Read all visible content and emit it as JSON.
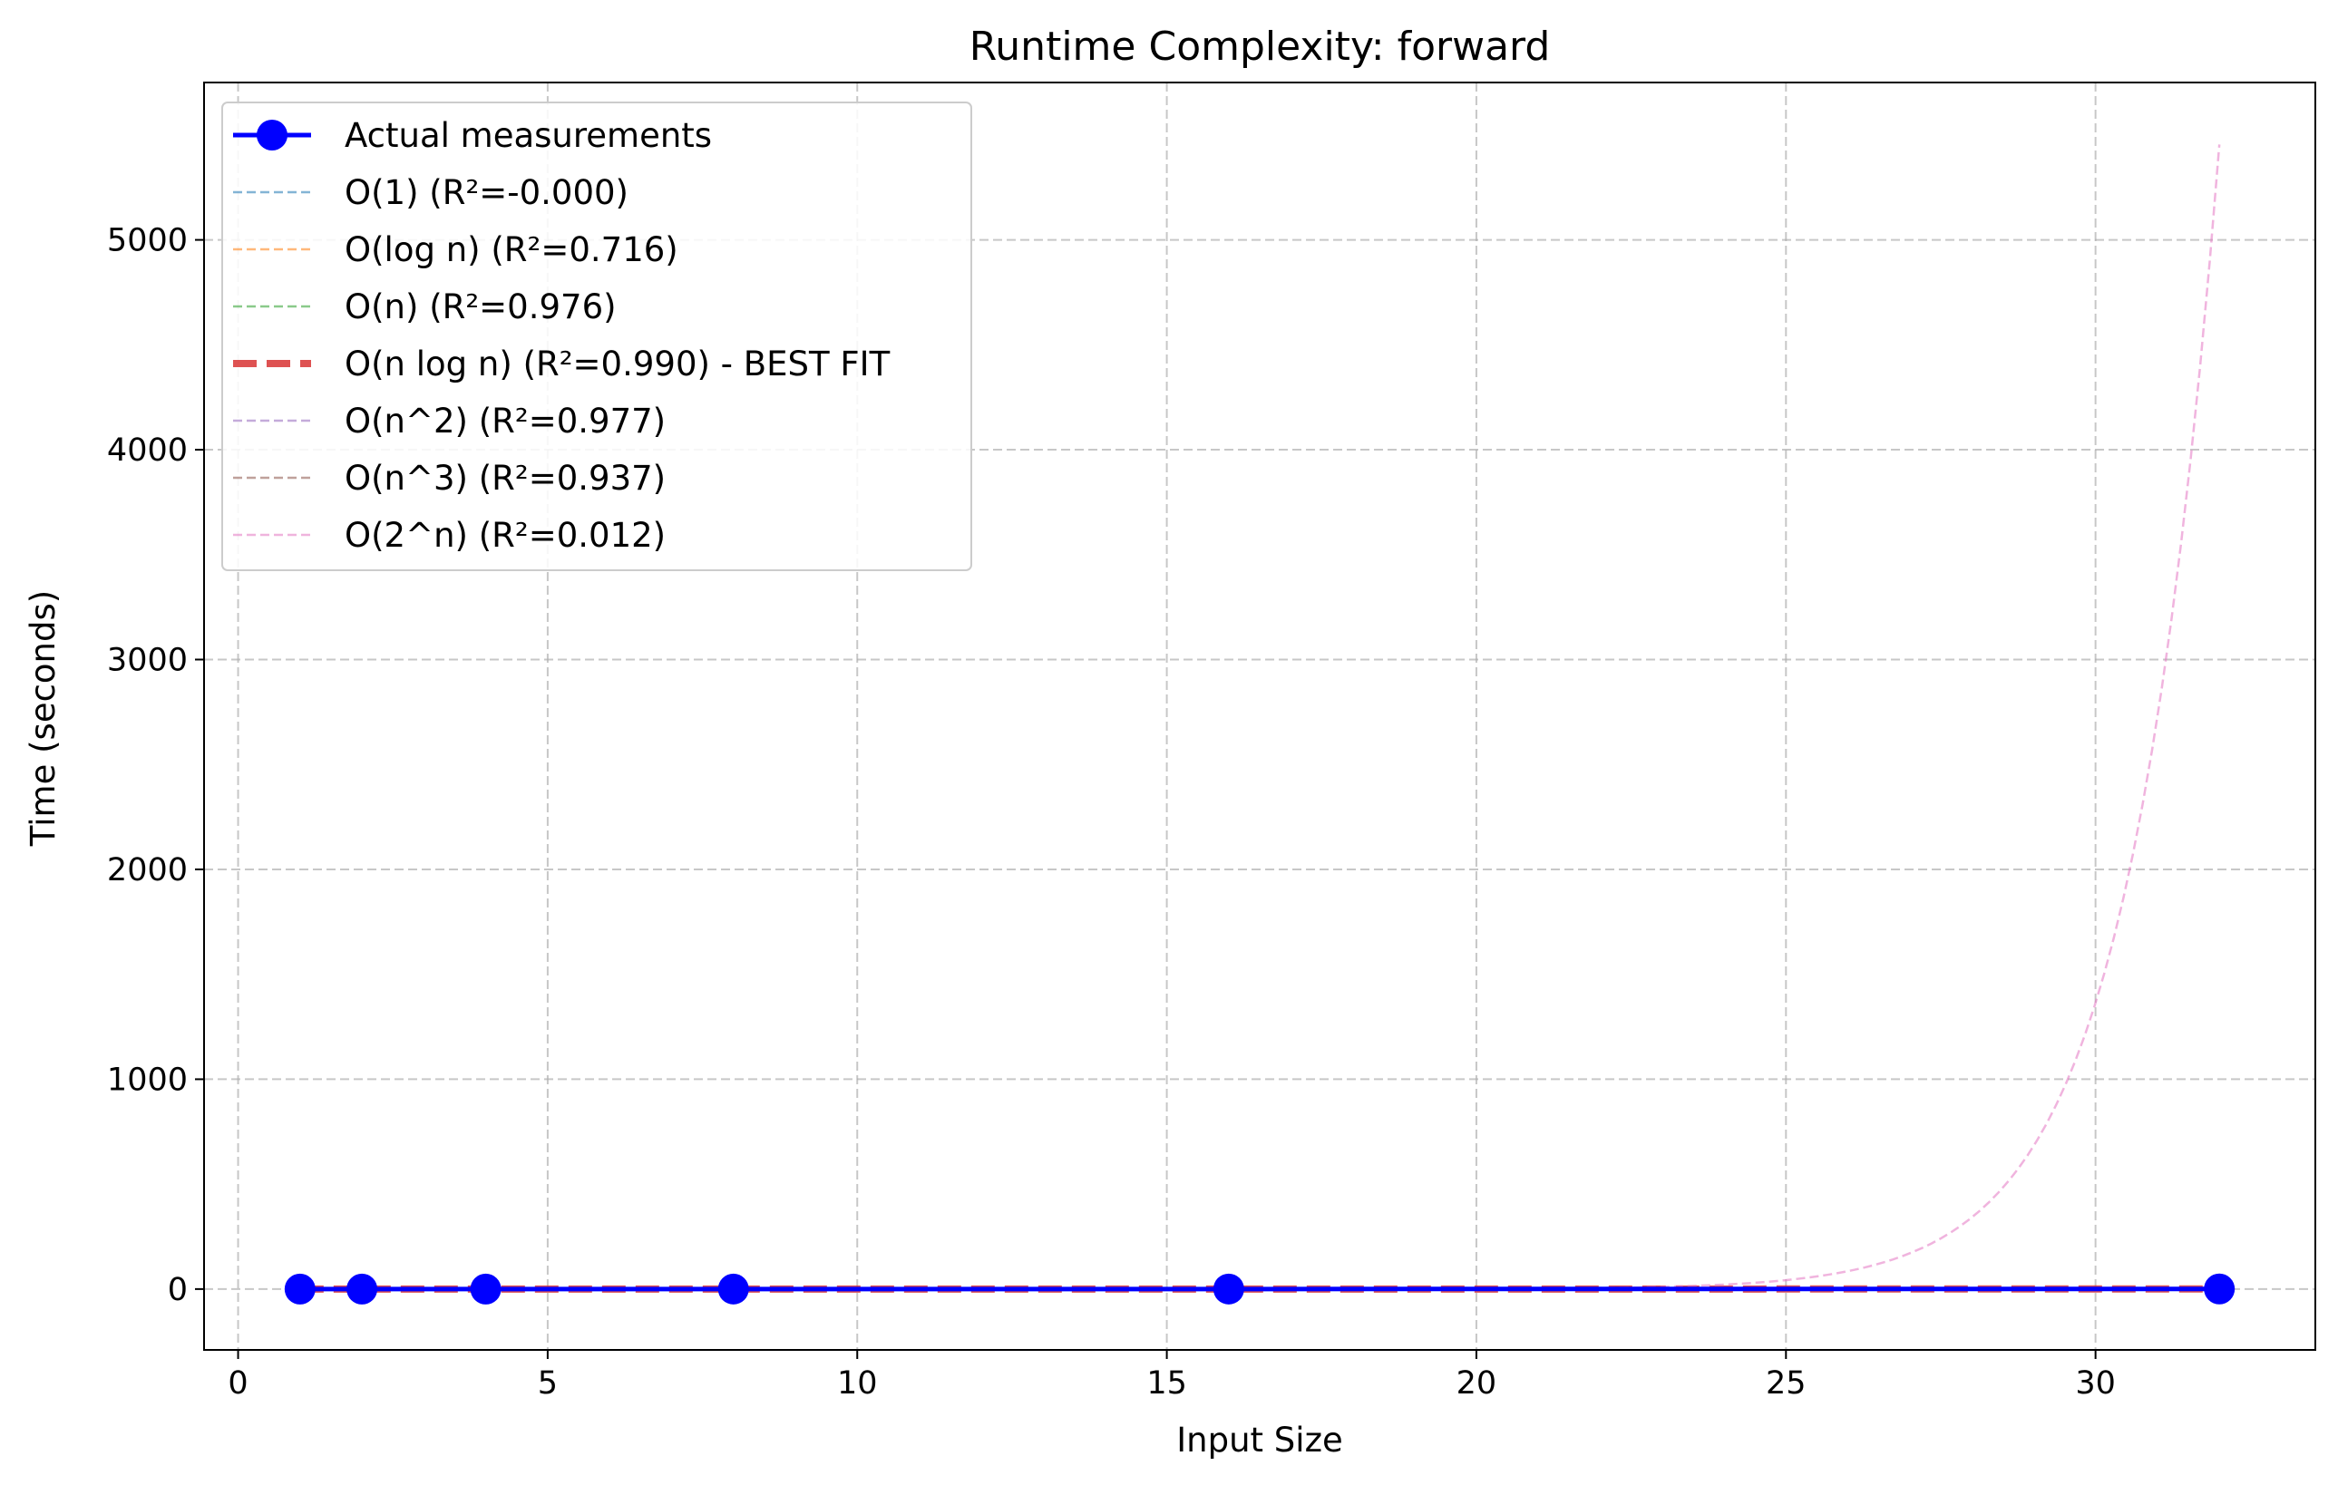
{
  "chart_data": {
    "type": "line",
    "title": "Runtime Complexity: forward",
    "xlabel": "Input Size",
    "ylabel": "Time (seconds)",
    "xlim": [
      -0.55,
      33.55
    ],
    "ylim": [
      -290,
      5750
    ],
    "xticks": [
      0,
      5,
      10,
      15,
      20,
      25,
      30
    ],
    "yticks": [
      0,
      1000,
      2000,
      3000,
      4000,
      5000
    ],
    "grid": true,
    "legend_position": "top-left",
    "measurements": {
      "name": "Actual measurements",
      "color": "#0000ff",
      "x": [
        1,
        2,
        4,
        8,
        16,
        32
      ],
      "y": [
        0.01,
        0.02,
        0.05,
        0.11,
        0.24,
        0.52
      ]
    },
    "fits": [
      {
        "name": "O(1) (R²=-0.000)",
        "model": "constant",
        "color": "#1f77b4",
        "best": false,
        "params": {
          "a": 0.158
        }
      },
      {
        "name": "O(log n) (R²=0.716)",
        "model": "log",
        "color": "#ff7f0e",
        "best": false,
        "params": {
          "a": 0.12,
          "b": -0.05
        }
      },
      {
        "name": "O(n) (R²=0.976)",
        "model": "linear",
        "color": "#2ca02c",
        "best": false,
        "params": {
          "a": 0.0166,
          "b": 0.005
        }
      },
      {
        "name": "O(n log n) (R²=0.990) - BEST FIT",
        "model": "nlogn",
        "color": "#d62728",
        "best": true,
        "params": {
          "a": 0.0033,
          "b": 0.01
        }
      },
      {
        "name": "O(n^2) (R²=0.977)",
        "model": "quadratic",
        "color": "#9467bd",
        "best": false,
        "params": {
          "a": 0.0005,
          "b": 0.05
        }
      },
      {
        "name": "O(n^3) (R²=0.937)",
        "model": "cubic",
        "color": "#8c564b",
        "best": false,
        "params": {
          "a": 1.6e-05,
          "b": 0.09
        }
      },
      {
        "name": "O(2^n) (R²=0.012)",
        "model": "exponential",
        "color": "#e377c2",
        "best": false,
        "params": {
          "a": 1.27e-06,
          "b": 0.05
        }
      }
    ]
  }
}
